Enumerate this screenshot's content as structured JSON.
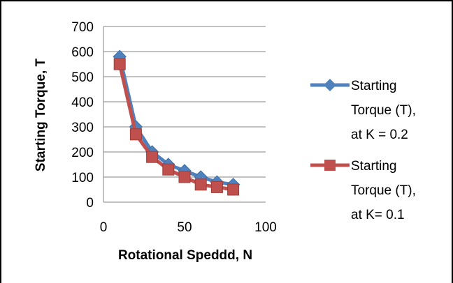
{
  "chart_data": {
    "type": "line",
    "title": "",
    "xlabel": "Rotational Speddd, N",
    "ylabel": "Starting Torque, T",
    "xlim": [
      0,
      100
    ],
    "ylim": [
      0,
      700
    ],
    "x_ticks": [
      "0",
      "50",
      "100"
    ],
    "y_ticks": [
      "0",
      "100",
      "200",
      "300",
      "400",
      "500",
      "600",
      "700"
    ],
    "grid": "horizontal",
    "legend_position": "right",
    "series": [
      {
        "name_lines": [
          "Starting",
          "Torque (T),",
          "at K = 0.2"
        ],
        "color": "#4f81bd",
        "marker": "diamond",
        "x": [
          10,
          20,
          30,
          40,
          50,
          60,
          70,
          80
        ],
        "y": [
          580,
          300,
          200,
          150,
          125,
          100,
          80,
          70
        ]
      },
      {
        "name_lines": [
          "Starting",
          "Torque (T),",
          "at K= 0.1"
        ],
        "color": "#c0504d",
        "marker": "square",
        "x": [
          10,
          20,
          30,
          40,
          50,
          60,
          70,
          80
        ],
        "y": [
          550,
          270,
          180,
          130,
          100,
          70,
          60,
          50
        ]
      }
    ]
  }
}
